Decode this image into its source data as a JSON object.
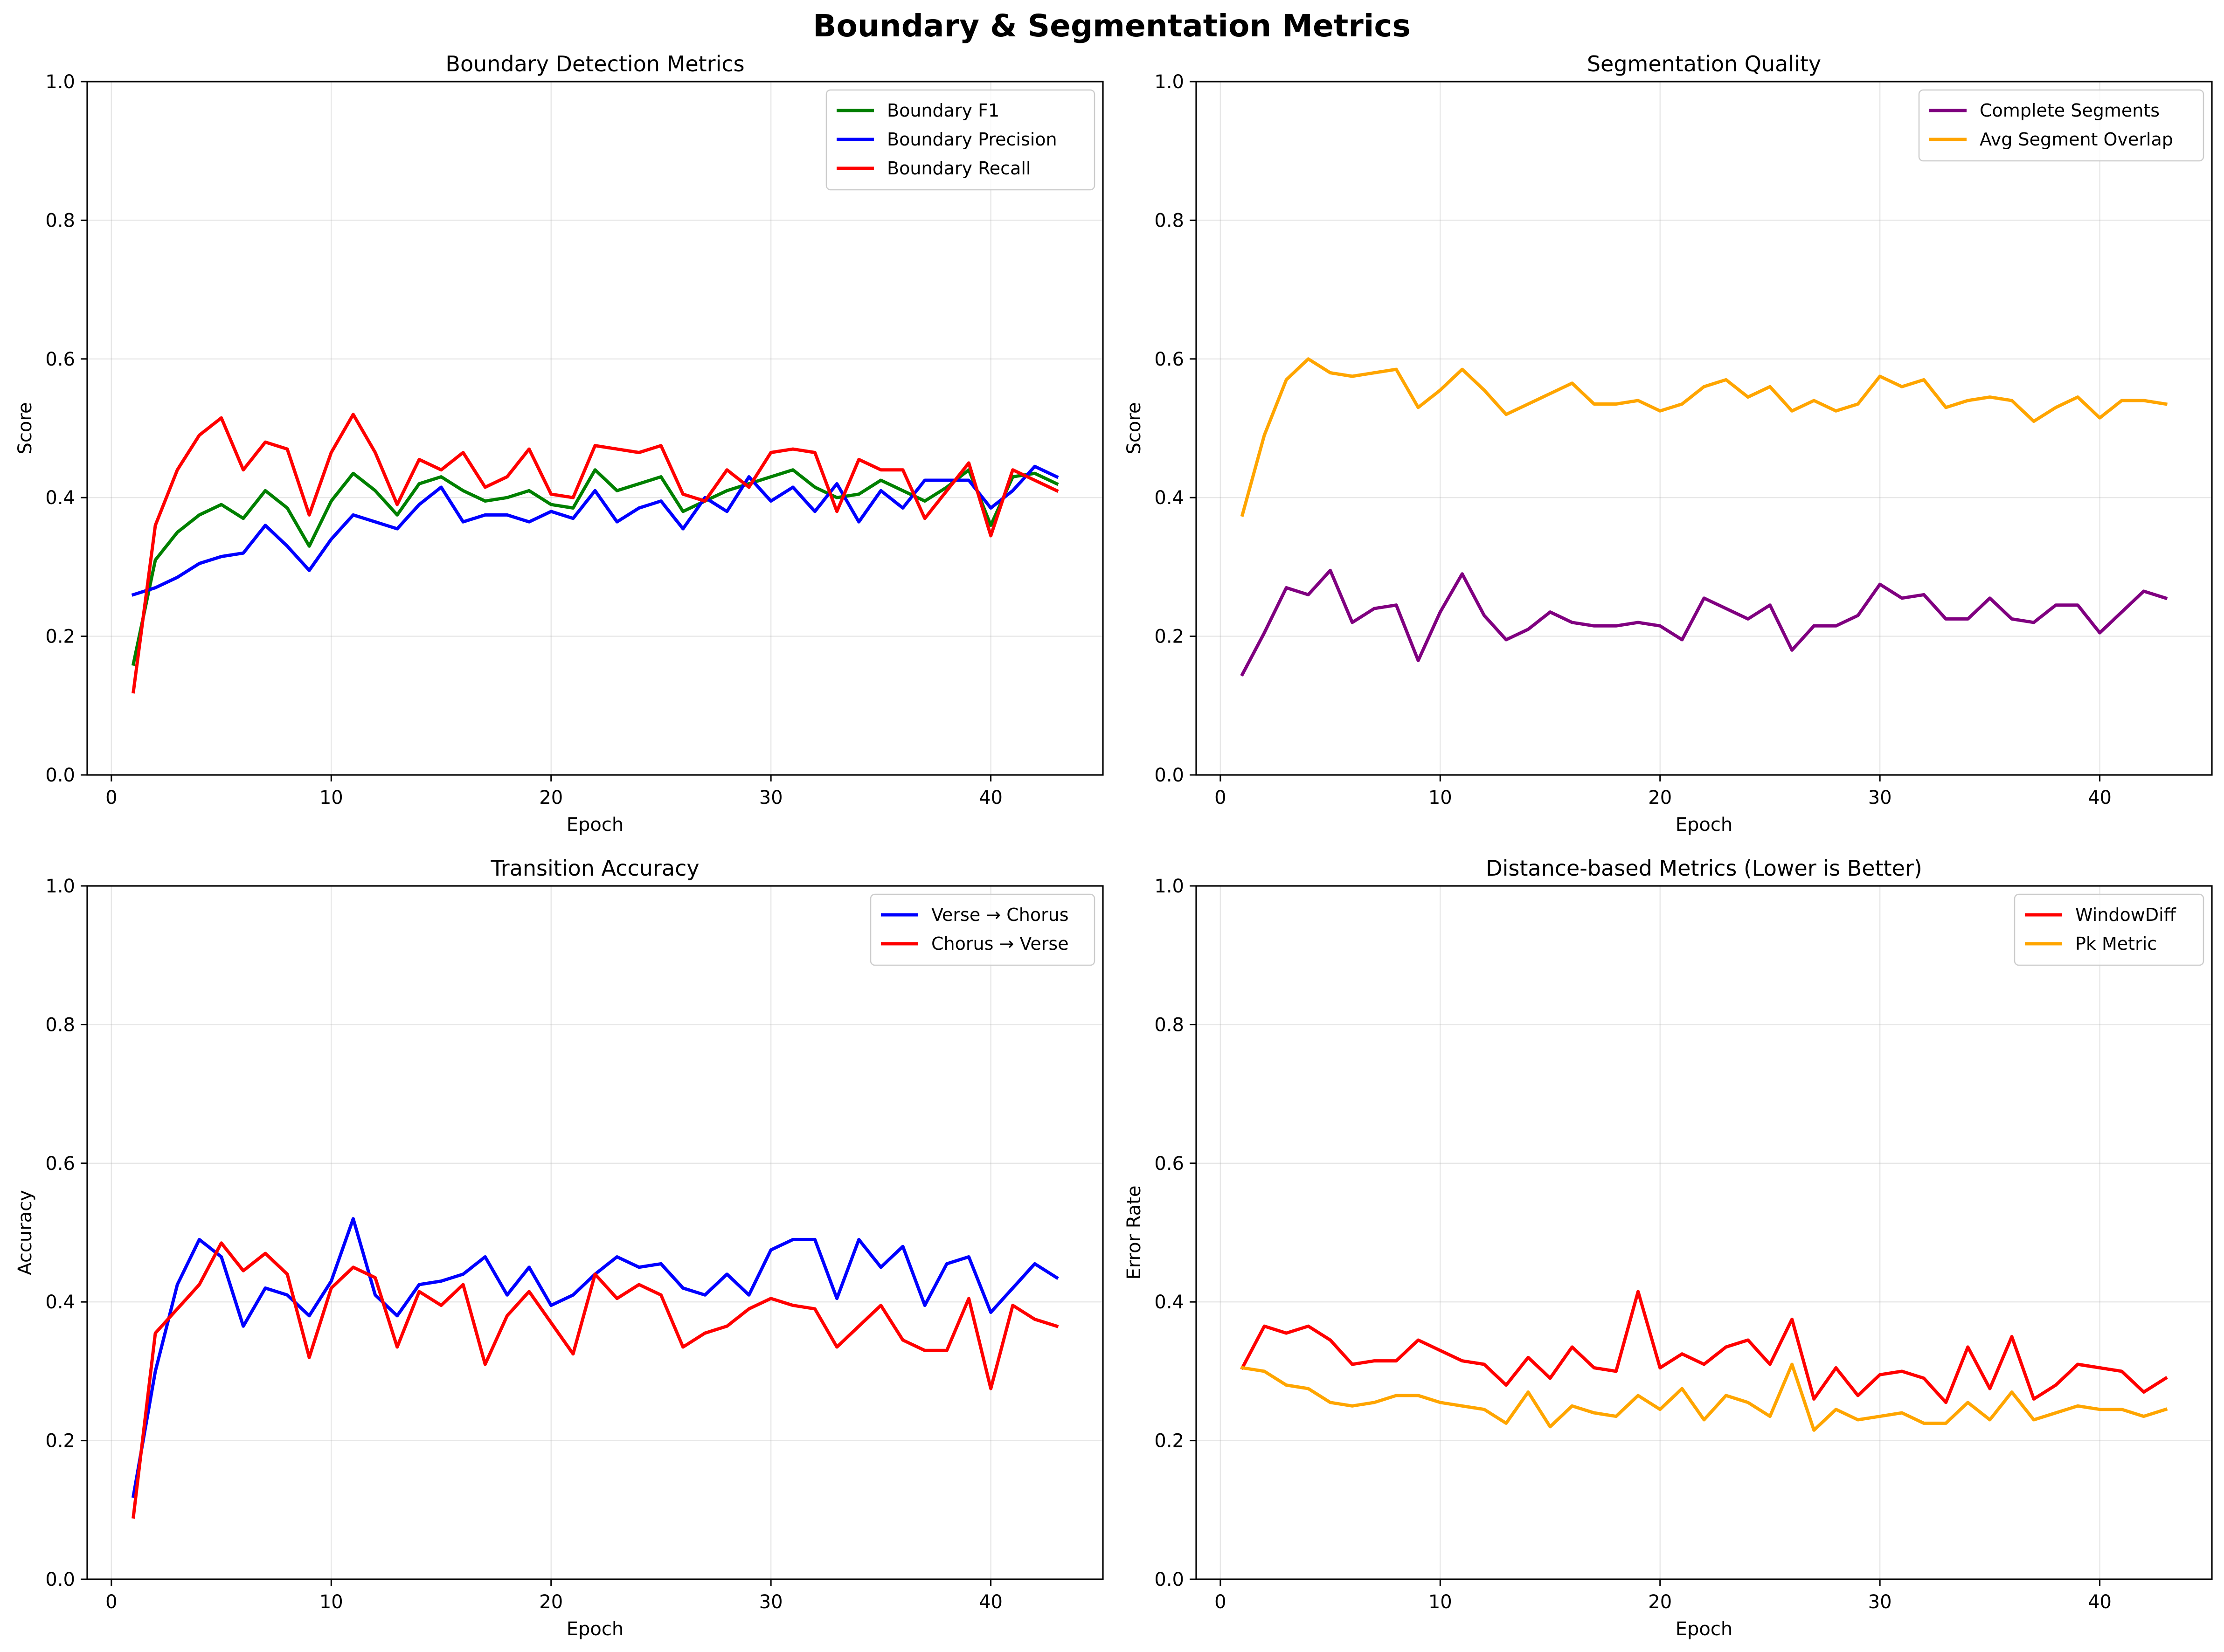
{
  "figure": {
    "title": "Boundary & Segmentation Metrics"
  },
  "chart_data": [
    {
      "type": "line",
      "title": "Boundary Detection Metrics",
      "xlabel": "Epoch",
      "ylabel": "Score",
      "xlim": [
        -1.1,
        45.1
      ],
      "ylim": [
        0,
        1
      ],
      "xticks": [
        0,
        10,
        20,
        30,
        40
      ],
      "yticks": [
        0.0,
        0.2,
        0.4,
        0.6,
        0.8,
        1.0
      ],
      "xtick_labels": [
        "0",
        "10",
        "20",
        "30",
        "40"
      ],
      "ytick_labels": [
        "0.0",
        "0.2",
        "0.4",
        "0.6",
        "0.8",
        "1.0"
      ],
      "grid": true,
      "legend": "top-right",
      "x": [
        1,
        2,
        3,
        4,
        5,
        6,
        7,
        8,
        9,
        10,
        11,
        12,
        13,
        14,
        15,
        16,
        17,
        18,
        19,
        20,
        21,
        22,
        23,
        24,
        25,
        26,
        27,
        28,
        29,
        30,
        31,
        32,
        33,
        34,
        35,
        36,
        37,
        38,
        39,
        40,
        41,
        42,
        43
      ],
      "series": [
        {
          "name": "Boundary F1",
          "color": "#008000",
          "values": [
            0.16,
            0.31,
            0.35,
            0.375,
            0.39,
            0.37,
            0.41,
            0.385,
            0.33,
            0.395,
            0.435,
            0.41,
            0.375,
            0.42,
            0.43,
            0.41,
            0.395,
            0.4,
            0.41,
            0.39,
            0.385,
            0.44,
            0.41,
            0.42,
            0.43,
            0.38,
            0.395,
            0.41,
            0.42,
            0.43,
            0.44,
            0.415,
            0.4,
            0.405,
            0.425,
            0.41,
            0.395,
            0.415,
            0.44,
            0.36,
            0.43,
            0.435,
            0.42
          ]
        },
        {
          "name": "Boundary Precision",
          "color": "#0000ff",
          "values": [
            0.26,
            0.27,
            0.285,
            0.305,
            0.315,
            0.32,
            0.36,
            0.33,
            0.295,
            0.34,
            0.375,
            0.365,
            0.355,
            0.39,
            0.415,
            0.365,
            0.375,
            0.375,
            0.365,
            0.38,
            0.37,
            0.41,
            0.365,
            0.385,
            0.395,
            0.355,
            0.4,
            0.38,
            0.43,
            0.395,
            0.415,
            0.38,
            0.42,
            0.365,
            0.41,
            0.385,
            0.425,
            0.425,
            0.425,
            0.385,
            0.41,
            0.445,
            0.43
          ]
        },
        {
          "name": "Boundary Recall",
          "color": "#ff0000",
          "values": [
            0.12,
            0.36,
            0.44,
            0.49,
            0.515,
            0.44,
            0.48,
            0.47,
            0.375,
            0.465,
            0.52,
            0.465,
            0.39,
            0.455,
            0.44,
            0.465,
            0.415,
            0.43,
            0.47,
            0.405,
            0.4,
            0.475,
            0.47,
            0.465,
            0.475,
            0.405,
            0.395,
            0.44,
            0.415,
            0.465,
            0.47,
            0.465,
            0.38,
            0.455,
            0.44,
            0.44,
            0.37,
            0.41,
            0.45,
            0.345,
            0.44,
            0.425,
            0.41
          ]
        }
      ]
    },
    {
      "type": "line",
      "title": "Segmentation Quality",
      "xlabel": "Epoch",
      "ylabel": "Score",
      "xlim": [
        -1.1,
        45.1
      ],
      "ylim": [
        0,
        1
      ],
      "xticks": [
        0,
        10,
        20,
        30,
        40
      ],
      "yticks": [
        0.0,
        0.2,
        0.4,
        0.6,
        0.8,
        1.0
      ],
      "xtick_labels": [
        "0",
        "10",
        "20",
        "30",
        "40"
      ],
      "ytick_labels": [
        "0.0",
        "0.2",
        "0.4",
        "0.6",
        "0.8",
        "1.0"
      ],
      "grid": true,
      "legend": "top-right",
      "x": [
        1,
        2,
        3,
        4,
        5,
        6,
        7,
        8,
        9,
        10,
        11,
        12,
        13,
        14,
        15,
        16,
        17,
        18,
        19,
        20,
        21,
        22,
        23,
        24,
        25,
        26,
        27,
        28,
        29,
        30,
        31,
        32,
        33,
        34,
        35,
        36,
        37,
        38,
        39,
        40,
        41,
        42,
        43
      ],
      "series": [
        {
          "name": "Complete Segments",
          "color": "#800080",
          "values": [
            0.145,
            0.205,
            0.27,
            0.26,
            0.295,
            0.22,
            0.24,
            0.245,
            0.165,
            0.235,
            0.29,
            0.23,
            0.195,
            0.21,
            0.235,
            0.22,
            0.215,
            0.215,
            0.22,
            0.215,
            0.195,
            0.255,
            0.24,
            0.225,
            0.245,
            0.18,
            0.215,
            0.215,
            0.23,
            0.275,
            0.255,
            0.26,
            0.225,
            0.225,
            0.255,
            0.225,
            0.22,
            0.245,
            0.245,
            0.205,
            0.235,
            0.265,
            0.255
          ]
        },
        {
          "name": "Avg Segment Overlap",
          "color": "#ffa500",
          "values": [
            0.375,
            0.49,
            0.57,
            0.6,
            0.58,
            0.575,
            0.58,
            0.585,
            0.53,
            0.555,
            0.585,
            0.555,
            0.52,
            0.535,
            0.55,
            0.565,
            0.535,
            0.535,
            0.54,
            0.525,
            0.535,
            0.56,
            0.57,
            0.545,
            0.56,
            0.525,
            0.54,
            0.525,
            0.535,
            0.575,
            0.56,
            0.57,
            0.53,
            0.54,
            0.545,
            0.54,
            0.51,
            0.53,
            0.545,
            0.515,
            0.54,
            0.54,
            0.535
          ]
        }
      ]
    },
    {
      "type": "line",
      "title": "Transition Accuracy",
      "xlabel": "Epoch",
      "ylabel": "Accuracy",
      "xlim": [
        -1.1,
        45.1
      ],
      "ylim": [
        0,
        1
      ],
      "xticks": [
        0,
        10,
        20,
        30,
        40
      ],
      "yticks": [
        0.0,
        0.2,
        0.4,
        0.6,
        0.8,
        1.0
      ],
      "xtick_labels": [
        "0",
        "10",
        "20",
        "30",
        "40"
      ],
      "ytick_labels": [
        "0.0",
        "0.2",
        "0.4",
        "0.6",
        "0.8",
        "1.0"
      ],
      "grid": true,
      "legend": "top-right",
      "x": [
        1,
        2,
        3,
        4,
        5,
        6,
        7,
        8,
        9,
        10,
        11,
        12,
        13,
        14,
        15,
        16,
        17,
        18,
        19,
        20,
        21,
        22,
        23,
        24,
        25,
        26,
        27,
        28,
        29,
        30,
        31,
        32,
        33,
        34,
        35,
        36,
        37,
        38,
        39,
        40,
        41,
        42,
        43
      ],
      "series": [
        {
          "name": "Verse → Chorus",
          "color": "#0000ff",
          "values": [
            0.12,
            0.3,
            0.425,
            0.49,
            0.465,
            0.365,
            0.42,
            0.41,
            0.38,
            0.43,
            0.52,
            0.41,
            0.38,
            0.425,
            0.43,
            0.44,
            0.465,
            0.41,
            0.45,
            0.395,
            0.41,
            0.44,
            0.465,
            0.45,
            0.455,
            0.42,
            0.41,
            0.44,
            0.41,
            0.475,
            0.49,
            0.49,
            0.405,
            0.49,
            0.45,
            0.48,
            0.395,
            0.455,
            0.465,
            0.385,
            0.42,
            0.455,
            0.435
          ]
        },
        {
          "name": "Chorus → Verse",
          "color": "#ff0000",
          "values": [
            0.09,
            0.355,
            0.39,
            0.425,
            0.485,
            0.445,
            0.47,
            0.44,
            0.32,
            0.42,
            0.45,
            0.435,
            0.335,
            0.415,
            0.395,
            0.425,
            0.31,
            0.38,
            0.415,
            0.37,
            0.325,
            0.44,
            0.405,
            0.425,
            0.41,
            0.335,
            0.355,
            0.365,
            0.39,
            0.405,
            0.395,
            0.39,
            0.335,
            0.365,
            0.395,
            0.345,
            0.33,
            0.33,
            0.405,
            0.275,
            0.395,
            0.375,
            0.365
          ]
        }
      ]
    },
    {
      "type": "line",
      "title": "Distance-based Metrics (Lower is Better)",
      "xlabel": "Epoch",
      "ylabel": "Error Rate",
      "xlim": [
        -1.1,
        45.1
      ],
      "ylim": [
        0,
        1
      ],
      "xticks": [
        0,
        10,
        20,
        30,
        40
      ],
      "yticks": [
        0.0,
        0.2,
        0.4,
        0.6,
        0.8,
        1.0
      ],
      "xtick_labels": [
        "0",
        "10",
        "20",
        "30",
        "40"
      ],
      "ytick_labels": [
        "0.0",
        "0.2",
        "0.4",
        "0.6",
        "0.8",
        "1.0"
      ],
      "grid": true,
      "legend": "top-right",
      "x": [
        1,
        2,
        3,
        4,
        5,
        6,
        7,
        8,
        9,
        10,
        11,
        12,
        13,
        14,
        15,
        16,
        17,
        18,
        19,
        20,
        21,
        22,
        23,
        24,
        25,
        26,
        27,
        28,
        29,
        30,
        31,
        32,
        33,
        34,
        35,
        36,
        37,
        38,
        39,
        40,
        41,
        42,
        43
      ],
      "series": [
        {
          "name": "WindowDiff",
          "color": "#ff0000",
          "values": [
            0.305,
            0.365,
            0.355,
            0.365,
            0.345,
            0.31,
            0.315,
            0.315,
            0.345,
            0.33,
            0.315,
            0.31,
            0.28,
            0.32,
            0.29,
            0.335,
            0.305,
            0.3,
            0.415,
            0.305,
            0.325,
            0.31,
            0.335,
            0.345,
            0.31,
            0.375,
            0.26,
            0.305,
            0.265,
            0.295,
            0.3,
            0.29,
            0.255,
            0.335,
            0.275,
            0.35,
            0.26,
            0.28,
            0.31,
            0.305,
            0.3,
            0.27,
            0.29
          ]
        },
        {
          "name": "Pk Metric",
          "color": "#ffa500",
          "values": [
            0.305,
            0.3,
            0.28,
            0.275,
            0.255,
            0.25,
            0.255,
            0.265,
            0.265,
            0.255,
            0.25,
            0.245,
            0.225,
            0.27,
            0.22,
            0.25,
            0.24,
            0.235,
            0.265,
            0.245,
            0.275,
            0.23,
            0.265,
            0.255,
            0.235,
            0.31,
            0.215,
            0.245,
            0.23,
            0.235,
            0.24,
            0.225,
            0.225,
            0.255,
            0.23,
            0.27,
            0.23,
            0.24,
            0.25,
            0.245,
            0.245,
            0.235,
            0.245
          ]
        }
      ]
    }
  ]
}
